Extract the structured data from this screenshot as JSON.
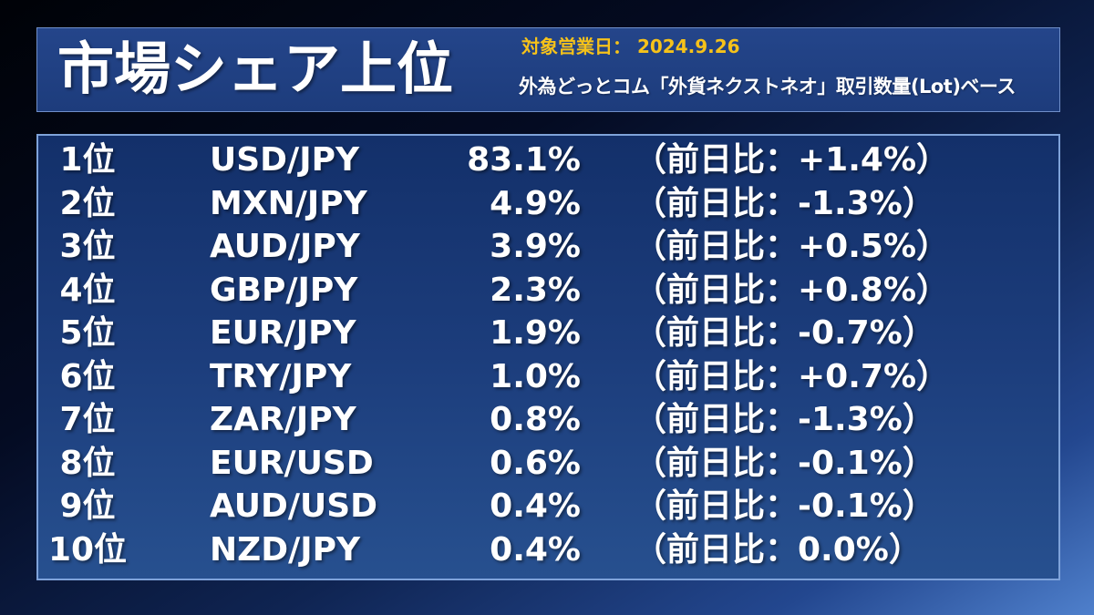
{
  "header": {
    "title": "市場シェア上位",
    "date_line": "対象営業日： 2024.9.26",
    "basis": "外為どっとコム「外貨ネクストネオ」取引数量(Lot)ベース"
  },
  "colors": {
    "date_text": "#f6c21a",
    "text": "#ffffff",
    "panel": "#1d3c7c",
    "panel_border": "#7fa3da"
  },
  "chart_data": {
    "type": "table",
    "rows": [
      {
        "rank": "1位",
        "pair": "USD/JPY",
        "share": "83.1%",
        "change": "（前日比：+1.4%）"
      },
      {
        "rank": "2位",
        "pair": "MXN/JPY",
        "share": "4.9%",
        "change": "（前日比：-1.3%）"
      },
      {
        "rank": "3位",
        "pair": "AUD/JPY",
        "share": "3.9%",
        "change": "（前日比：+0.5%）"
      },
      {
        "rank": "4位",
        "pair": "GBP/JPY",
        "share": "2.3%",
        "change": "（前日比：+0.8%）"
      },
      {
        "rank": "5位",
        "pair": "EUR/JPY",
        "share": "1.9%",
        "change": "（前日比：-0.7%）"
      },
      {
        "rank": "6位",
        "pair": "TRY/JPY",
        "share": "1.0%",
        "change": "（前日比：+0.7%）"
      },
      {
        "rank": "7位",
        "pair": "ZAR/JPY",
        "share": "0.8%",
        "change": "（前日比：-1.3%）"
      },
      {
        "rank": "8位",
        "pair": "EUR/USD",
        "share": "0.6%",
        "change": "（前日比：-0.1%）"
      },
      {
        "rank": "9位",
        "pair": "AUD/USD",
        "share": "0.4%",
        "change": "（前日比：-0.1%）"
      },
      {
        "rank": "10位",
        "pair": "NZD/JPY",
        "share": "0.4%",
        "change": "（前日比：0.0%）"
      }
    ]
  }
}
